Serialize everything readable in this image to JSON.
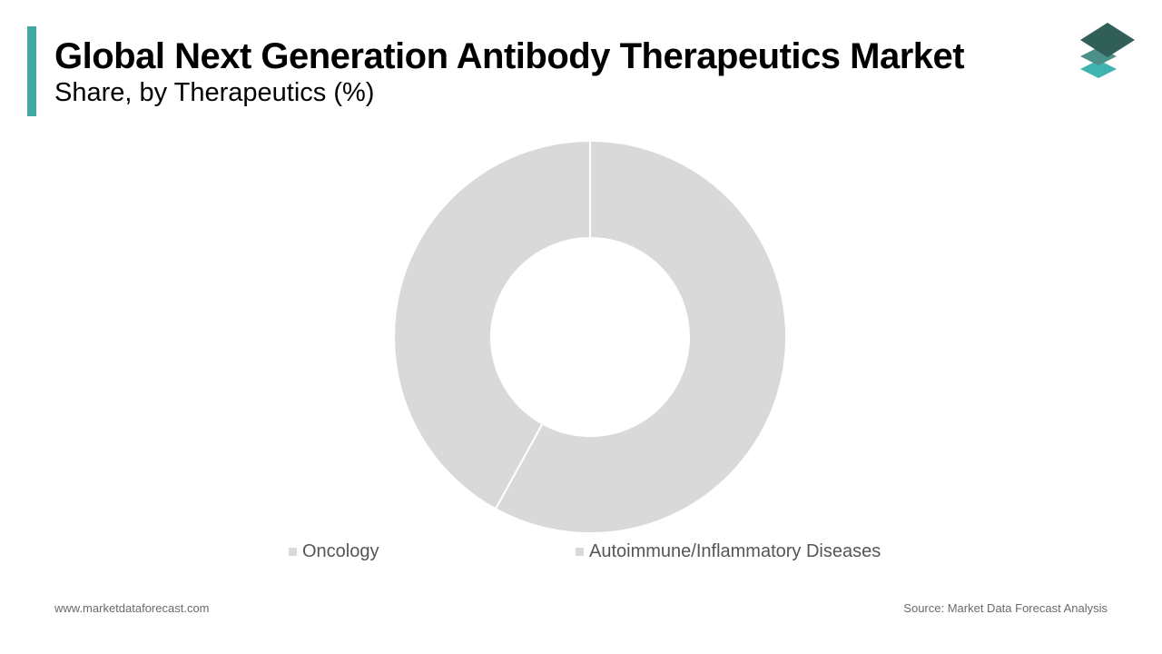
{
  "header": {
    "title": "Global Next Generation Antibody Therapeutics Market",
    "subtitle": "Share, by Therapeutics (%)",
    "accent_color": "#3fa9a5",
    "logo_icon": "stacked-layers-icon"
  },
  "chart_data": {
    "type": "donut",
    "title": "Global Next Generation Antibody Therapeutics Market",
    "subtitle": "Share, by Therapeutics (%)",
    "legend_position": "bottom",
    "slices": [
      {
        "name": "Oncology",
        "value": 58,
        "color": "#d9d9d9"
      },
      {
        "name": "Autoimmune/Inflammatory Diseases",
        "value": 42,
        "color": "#d9d9d9"
      }
    ]
  },
  "footer": {
    "website": "www.marketdataforecast.com",
    "source": "Source: Market Data Forecast Analysis"
  }
}
